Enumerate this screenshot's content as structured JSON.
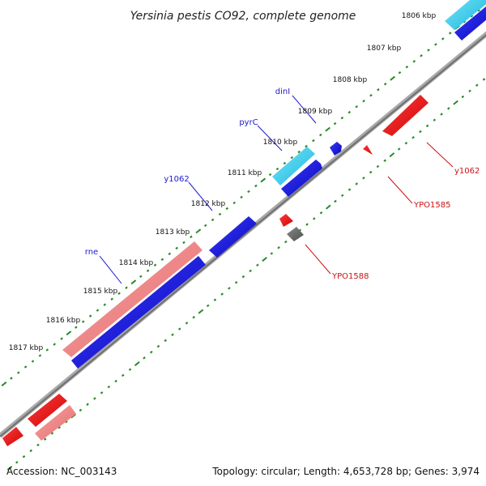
{
  "title": "Yersinia pestis CO92, complete genome",
  "accession": "Accession: NC_003143",
  "summary": "Topology: circular; Length: 4,653,728 bp; Genes: 3,974",
  "ticks": [
    "1806 kbp",
    "1807 kbp",
    "1808 kbp",
    "1809 kbp",
    "1810 kbp",
    "1811 kbp",
    "1812 kbp",
    "1813 kbp",
    "1814 kbp",
    "1815 kbp",
    "1816 kbp",
    "1817 kbp"
  ],
  "labels": {
    "forward": [
      "dinI",
      "pyrC",
      "y1062",
      "rne"
    ],
    "reverse": [
      "y1062",
      "YPO1585",
      "YPO1588"
    ]
  },
  "colors": {
    "forward_label": "#1a1acc",
    "reverse_label": "#cc1111",
    "blue": "#1010dd",
    "cyan": "#33ccee",
    "red": "#ee1111",
    "salmon": "#ee8080",
    "gray": "#666666",
    "backbone": "#888888",
    "tick": "#2a8a2a"
  }
}
